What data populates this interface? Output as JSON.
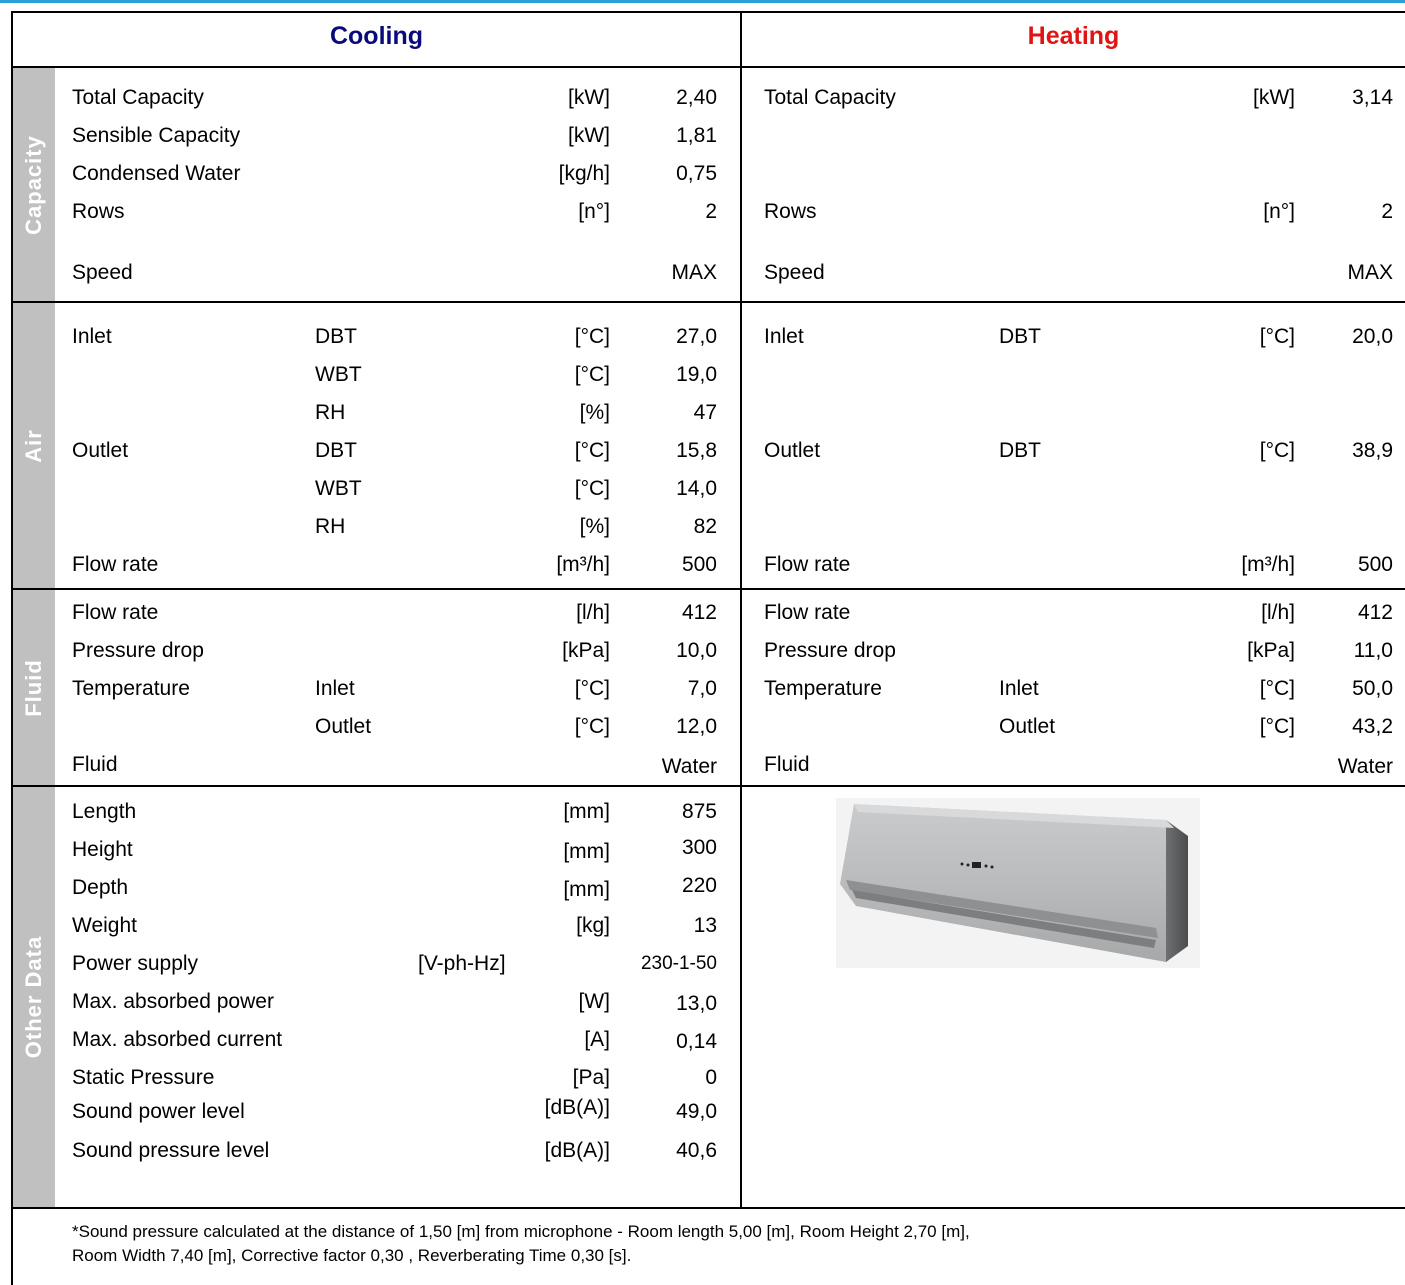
{
  "header": {
    "cooling": "Cooling",
    "heating": "Heating"
  },
  "colors": {
    "cooling": "#0a0a7a",
    "heating": "#e01414",
    "band": "#c0c0c0"
  },
  "sections": [
    "Capacity",
    "Air",
    "Fluid",
    "Other Data"
  ],
  "cooling": {
    "capacity": [
      {
        "label": "Total Capacity",
        "unit": "[kW]",
        "value": "2,40"
      },
      {
        "label": "Sensible Capacity",
        "unit": "[kW]",
        "value": "1,81"
      },
      {
        "label": "Condensed Water",
        "unit": "[kg/h]",
        "value": "0,75"
      },
      {
        "label": "Rows",
        "unit": "[n°]",
        "value": "2"
      },
      {
        "label": "Speed",
        "unit": "",
        "value": "MAX"
      }
    ],
    "air": [
      {
        "label": "Inlet",
        "sub": "DBT",
        "unit": "[°C]",
        "value": "27,0"
      },
      {
        "label": "",
        "sub": "WBT",
        "unit": "[°C]",
        "value": "19,0"
      },
      {
        "label": "",
        "sub": "RH",
        "unit": "[%]",
        "value": "47"
      },
      {
        "label": "Outlet",
        "sub": "DBT",
        "unit": "[°C]",
        "value": "15,8"
      },
      {
        "label": "",
        "sub": "WBT",
        "unit": "[°C]",
        "value": "14,0"
      },
      {
        "label": "",
        "sub": "RH",
        "unit": "[%]",
        "value": "82"
      },
      {
        "label": "Flow rate",
        "sub": "",
        "unit": "[m³/h]",
        "value": "500"
      }
    ],
    "fluid": [
      {
        "label": "Flow rate",
        "sub": "",
        "unit": "[l/h]",
        "value": "412"
      },
      {
        "label": "Pressure drop",
        "sub": "",
        "unit": "[kPa]",
        "value": "10,0"
      },
      {
        "label": "Temperature",
        "sub": "Inlet",
        "unit": "[°C]",
        "value": "7,0"
      },
      {
        "label": "",
        "sub": "Outlet",
        "unit": "[°C]",
        "value": "12,0"
      },
      {
        "label": "Fluid",
        "sub": "",
        "unit": "",
        "value": "Water"
      }
    ]
  },
  "heating": {
    "capacity": [
      {
        "label": "Total Capacity",
        "unit": "[kW]",
        "value": "3,14"
      },
      {
        "label": "Rows",
        "unit": "[n°]",
        "value": "2"
      },
      {
        "label": "Speed",
        "unit": "",
        "value": "MAX"
      }
    ],
    "air": [
      {
        "label": "Inlet",
        "sub": "DBT",
        "unit": "[°C]",
        "value": "20,0"
      },
      {
        "label": "Outlet",
        "sub": "DBT",
        "unit": "[°C]",
        "value": "38,9"
      },
      {
        "label": "Flow rate",
        "sub": "",
        "unit": "[m³/h]",
        "value": "500"
      }
    ],
    "fluid": [
      {
        "label": "Flow rate",
        "sub": "",
        "unit": "[l/h]",
        "value": "412"
      },
      {
        "label": "Pressure drop",
        "sub": "",
        "unit": "[kPa]",
        "value": "11,0"
      },
      {
        "label": "Temperature",
        "sub": "Inlet",
        "unit": "[°C]",
        "value": "50,0"
      },
      {
        "label": "",
        "sub": "Outlet",
        "unit": "[°C]",
        "value": "43,2"
      },
      {
        "label": "Fluid",
        "sub": "",
        "unit": "",
        "value": "Water"
      }
    ]
  },
  "other": [
    {
      "label": "Length",
      "unit": "[mm]",
      "value": "875"
    },
    {
      "label": "Height",
      "unit": "[mm]",
      "value": "300"
    },
    {
      "label": "Depth",
      "unit": "[mm]",
      "value": "220"
    },
    {
      "label": "Weight",
      "unit": "[kg]",
      "value": "13"
    },
    {
      "label": "Power supply",
      "unit": "[V-ph-Hz]",
      "value": "230-1-50"
    },
    {
      "label": "Max. absorbed power",
      "unit": "[W]",
      "value": "13,0"
    },
    {
      "label": "Max. absorbed current",
      "unit": "[A]",
      "value": "0,14"
    },
    {
      "label": "Static Pressure",
      "unit": "[Pa]",
      "value": "0"
    },
    {
      "label": "Sound power level",
      "unit": "[dB(A)]",
      "value": "49,0"
    },
    {
      "label": "Sound pressure level",
      "unit": "[dB(A)]",
      "value": "40,6"
    }
  ],
  "footnote": {
    "line1": "*Sound pressure calculated at the distance of 1,50 [m] from microphone - Room length 5,00 [m], Room Height 2,70 [m],",
    "line2": "Room Width 7,40 [m], Corrective factor 0,30 , Reverberating Time 0,30 [s]."
  },
  "image": {
    "icon": "air-conditioner-unit-image"
  }
}
